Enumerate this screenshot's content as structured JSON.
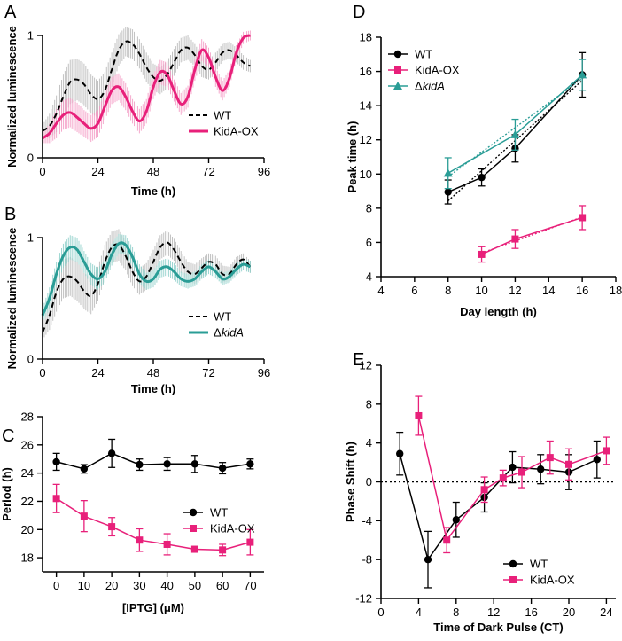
{
  "colors": {
    "wt": "#000000",
    "kida_ox": "#e8207a",
    "dkida": "#2a9d96",
    "band_wt": "#b8b8b8",
    "band_ox": "#f49ac4",
    "band_dk": "#8ccfc9"
  },
  "chart_data": [
    {
      "panel": "A",
      "type": "line",
      "title": "",
      "xlabel": "Time (h)",
      "ylabel": "Normalized luminescence",
      "xlim": [
        0,
        96
      ],
      "ylim": [
        0,
        1
      ],
      "xticks": [
        "0",
        "24",
        "48",
        "72",
        "96"
      ],
      "yticks": [
        "0",
        "1"
      ],
      "series": [
        {
          "name": "WT",
          "style": "dashed",
          "color": "#000000",
          "x": [
            0,
            3,
            6,
            9,
            12,
            15,
            18,
            21,
            24,
            27,
            30,
            33,
            36,
            39,
            42,
            45,
            48,
            51,
            54,
            57,
            60,
            63,
            66,
            69,
            72,
            75,
            78,
            81,
            84,
            87,
            90
          ],
          "y": [
            0.22,
            0.26,
            0.36,
            0.5,
            0.62,
            0.64,
            0.6,
            0.52,
            0.48,
            0.55,
            0.72,
            0.88,
            0.95,
            0.93,
            0.85,
            0.74,
            0.66,
            0.63,
            0.68,
            0.78,
            0.88,
            0.9,
            0.84,
            0.75,
            0.72,
            0.78,
            0.86,
            0.88,
            0.84,
            0.78,
            0.75
          ],
          "err": [
            0.05,
            0.1,
            0.15,
            0.18,
            0.18,
            0.17,
            0.17,
            0.16,
            0.15,
            0.15,
            0.14,
            0.13,
            0.12,
            0.12,
            0.12,
            0.12,
            0.11,
            0.11,
            0.11,
            0.11,
            0.1,
            0.1,
            0.09,
            0.09,
            0.08,
            0.08,
            0.07,
            0.07,
            0.06,
            0.06,
            0.05
          ]
        },
        {
          "name": "KidA-OX",
          "style": "solid",
          "color": "#e8207a",
          "x": [
            0,
            3,
            6,
            9,
            12,
            15,
            18,
            21,
            24,
            27,
            30,
            33,
            36,
            39,
            42,
            45,
            48,
            51,
            54,
            57,
            60,
            63,
            66,
            69,
            72,
            75,
            78,
            81,
            84,
            87,
            90
          ],
          "y": [
            0.16,
            0.2,
            0.28,
            0.35,
            0.37,
            0.33,
            0.28,
            0.24,
            0.28,
            0.42,
            0.55,
            0.58,
            0.5,
            0.38,
            0.3,
            0.38,
            0.58,
            0.7,
            0.68,
            0.55,
            0.44,
            0.5,
            0.72,
            0.88,
            0.82,
            0.66,
            0.55,
            0.65,
            0.86,
            0.98,
            1.0
          ],
          "err": [
            0.04,
            0.08,
            0.12,
            0.12,
            0.12,
            0.12,
            0.11,
            0.11,
            0.11,
            0.11,
            0.11,
            0.11,
            0.11,
            0.1,
            0.1,
            0.1,
            0.1,
            0.1,
            0.1,
            0.09,
            0.09,
            0.09,
            0.09,
            0.09,
            0.08,
            0.08,
            0.08,
            0.07,
            0.06,
            0.05,
            0.04
          ]
        }
      ],
      "legend": [
        "WT",
        "KidA-OX"
      ]
    },
    {
      "panel": "B",
      "type": "line",
      "title": "",
      "xlabel": "Time (h)",
      "ylabel": "Normalized luminescence",
      "xlim": [
        0,
        96
      ],
      "ylim": [
        0,
        1
      ],
      "xticks": [
        "0",
        "24",
        "48",
        "72",
        "96"
      ],
      "yticks": [
        "0",
        "1"
      ],
      "series": [
        {
          "name": "WT",
          "style": "dashed",
          "color": "#000000",
          "x": [
            0,
            3,
            6,
            9,
            12,
            15,
            18,
            21,
            24,
            27,
            30,
            33,
            36,
            39,
            42,
            45,
            48,
            51,
            54,
            57,
            60,
            63,
            66,
            69,
            72,
            75,
            78,
            81,
            84,
            87,
            90
          ],
          "y": [
            0.22,
            0.36,
            0.55,
            0.66,
            0.68,
            0.64,
            0.56,
            0.52,
            0.62,
            0.8,
            0.92,
            0.94,
            0.85,
            0.72,
            0.64,
            0.68,
            0.8,
            0.92,
            0.96,
            0.9,
            0.8,
            0.72,
            0.7,
            0.75,
            0.8,
            0.78,
            0.7,
            0.7,
            0.78,
            0.82,
            0.76
          ],
          "err": [
            0.06,
            0.12,
            0.16,
            0.16,
            0.16,
            0.16,
            0.15,
            0.15,
            0.14,
            0.14,
            0.13,
            0.13,
            0.12,
            0.12,
            0.11,
            0.11,
            0.1,
            0.1,
            0.1,
            0.09,
            0.09,
            0.08,
            0.08,
            0.08,
            0.07,
            0.07,
            0.07,
            0.06,
            0.06,
            0.05,
            0.05
          ]
        },
        {
          "name": "ΔkidA",
          "style": "solid",
          "color": "#2a9d96",
          "x": [
            0,
            3,
            6,
            9,
            12,
            15,
            18,
            21,
            24,
            27,
            30,
            33,
            36,
            39,
            42,
            45,
            48,
            51,
            54,
            57,
            60,
            63,
            66,
            69,
            72,
            75,
            78,
            81,
            84,
            87,
            90
          ],
          "y": [
            0.36,
            0.5,
            0.7,
            0.85,
            0.92,
            0.9,
            0.8,
            0.7,
            0.66,
            0.72,
            0.86,
            0.95,
            0.94,
            0.84,
            0.7,
            0.64,
            0.66,
            0.74,
            0.76,
            0.72,
            0.66,
            0.64,
            0.66,
            0.72,
            0.76,
            0.72,
            0.66,
            0.68,
            0.74,
            0.78,
            0.76
          ],
          "err": [
            0.06,
            0.09,
            0.1,
            0.1,
            0.1,
            0.1,
            0.09,
            0.09,
            0.09,
            0.09,
            0.09,
            0.08,
            0.08,
            0.08,
            0.08,
            0.07,
            0.07,
            0.07,
            0.07,
            0.07,
            0.06,
            0.06,
            0.06,
            0.06,
            0.06,
            0.05,
            0.05,
            0.05,
            0.05,
            0.05,
            0.05
          ]
        }
      ],
      "legend": [
        "WT",
        "ΔkidA"
      ]
    },
    {
      "panel": "C",
      "type": "line",
      "title": "",
      "xlabel": "[IPTG] (μM)",
      "ylabel": "Period (h)",
      "xlim": [
        -5,
        75
      ],
      "ylim": [
        17,
        28
      ],
      "xticks": [
        "0",
        "10",
        "20",
        "30",
        "40",
        "50",
        "60",
        "70"
      ],
      "yticks": [
        "18",
        "20",
        "22",
        "24",
        "26",
        "28"
      ],
      "series": [
        {
          "name": "WT",
          "marker": "circle",
          "color": "#000000",
          "x": [
            0,
            10,
            20,
            30,
            40,
            50,
            60,
            70
          ],
          "y": [
            24.8,
            24.3,
            25.4,
            24.6,
            24.65,
            24.65,
            24.35,
            24.65
          ],
          "err": [
            0.6,
            0.3,
            1.0,
            0.4,
            0.45,
            0.6,
            0.4,
            0.35
          ]
        },
        {
          "name": "KidA-OX",
          "marker": "square",
          "color": "#e8207a",
          "x": [
            0,
            10,
            20,
            30,
            40,
            50,
            60,
            70
          ],
          "y": [
            22.2,
            20.95,
            20.2,
            19.25,
            18.95,
            18.6,
            18.55,
            19.1
          ],
          "err": [
            1.0,
            1.1,
            0.65,
            0.8,
            0.75,
            0.1,
            0.4,
            0.9
          ]
        }
      ],
      "legend": [
        "WT",
        "KidA-OX"
      ]
    },
    {
      "panel": "D",
      "type": "line",
      "title": "",
      "xlabel": "Day length (h)",
      "ylabel": "Peak time (h)",
      "xlim": [
        4,
        18
      ],
      "ylim": [
        4,
        18
      ],
      "xticks": [
        "4",
        "6",
        "8",
        "10",
        "12",
        "14",
        "16",
        "18"
      ],
      "yticks": [
        "4",
        "6",
        "8",
        "10",
        "12",
        "14",
        "16",
        "18"
      ],
      "series": [
        {
          "name": "WT",
          "marker": "circle",
          "color": "#000000",
          "x": [
            8,
            10,
            12,
            16
          ],
          "y": [
            8.95,
            9.8,
            11.5,
            15.8
          ],
          "err": [
            0.7,
            0.5,
            0.8,
            1.3
          ]
        },
        {
          "name": "KidA-OX",
          "marker": "square",
          "color": "#e8207a",
          "x": [
            10,
            12,
            16
          ],
          "y": [
            5.3,
            6.2,
            7.45
          ],
          "err": [
            0.45,
            0.55,
            0.7
          ]
        },
        {
          "name": "ΔkidA",
          "marker": "triangle",
          "color": "#2a9d96",
          "x": [
            8,
            12,
            16
          ],
          "y": [
            10.05,
            12.3,
            15.8
          ],
          "err": [
            0.9,
            0.9,
            0.9
          ]
        }
      ],
      "legend": [
        "WT",
        "KidA-OX",
        "ΔkidA"
      ]
    },
    {
      "panel": "E",
      "type": "line",
      "title": "",
      "xlabel": "Time of Dark Pulse (CT)",
      "ylabel": "Phase Shift (h)",
      "xlim": [
        0,
        25
      ],
      "ylim": [
        -12,
        12
      ],
      "xticks": [
        "0",
        "4",
        "8",
        "12",
        "16",
        "20",
        "24"
      ],
      "yticks": [
        "-12",
        "-8",
        "-4",
        "0",
        "4",
        "8",
        "12"
      ],
      "series": [
        {
          "name": "WT",
          "marker": "circle",
          "color": "#000000",
          "x": [
            2,
            5,
            8,
            11,
            14,
            17,
            20,
            23
          ],
          "y": [
            2.9,
            -8.0,
            -3.9,
            -1.6,
            1.5,
            1.3,
            1.0,
            2.3
          ],
          "err": [
            2.2,
            2.9,
            1.8,
            1.5,
            1.6,
            1.5,
            1.8,
            1.9
          ]
        },
        {
          "name": "KidA-OX",
          "marker": "square",
          "color": "#e8207a",
          "x": [
            4,
            7,
            11,
            13,
            15,
            18,
            20,
            24
          ],
          "y": [
            6.8,
            -6.0,
            -0.8,
            0.4,
            1.0,
            2.5,
            1.8,
            3.2
          ],
          "err": [
            2.0,
            1.3,
            1.3,
            0.8,
            1.6,
            1.7,
            1.6,
            1.4
          ]
        }
      ],
      "legend": [
        "WT",
        "KidA-OX"
      ]
    }
  ]
}
